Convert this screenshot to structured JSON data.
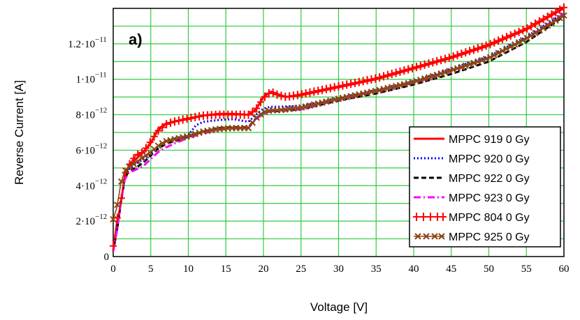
{
  "chart_data": {
    "type": "line",
    "panel_label": "a)",
    "xlabel": "Voltage [V]",
    "ylabel": "Reverse Current [A]",
    "xlim": [
      0,
      60
    ],
    "ylim": [
      0,
      1.4e-11
    ],
    "grid": true,
    "x_ticks": [
      0,
      5,
      10,
      15,
      20,
      25,
      30,
      35,
      40,
      45,
      50,
      55,
      60
    ],
    "x_tick_labels": [
      "0",
      "5",
      "10",
      "15",
      "20",
      "25",
      "30",
      "35",
      "40",
      "45",
      "50",
      "55",
      "60"
    ],
    "y_ticks": [
      {
        "value": 0,
        "mantissa": "0",
        "exponent": ""
      },
      {
        "value": 2e-12,
        "mantissa": "2·10",
        "exponent": "−12"
      },
      {
        "value": 4e-12,
        "mantissa": "4·10",
        "exponent": "−12"
      },
      {
        "value": 6e-12,
        "mantissa": "6·10",
        "exponent": "−12"
      },
      {
        "value": 8e-12,
        "mantissa": "8·10",
        "exponent": "−12"
      },
      {
        "value": 1e-11,
        "mantissa": "1·10",
        "exponent": "−11"
      },
      {
        "value": 1.2e-11,
        "mantissa": "1.2·10",
        "exponent": "−11"
      }
    ],
    "legend_position": "bottom-right",
    "series": [
      {
        "name": "MPPC 919 0 Gy",
        "color": "#ff0000",
        "style": "solid",
        "x": [
          0,
          0.5,
          1,
          1.5,
          2,
          3,
          4,
          5,
          6,
          7,
          8,
          10,
          12,
          14,
          16,
          18,
          19,
          20,
          21,
          22,
          23,
          25,
          30,
          35,
          40,
          45,
          50,
          55,
          60
        ],
        "y": [
          4e-13,
          1.5e-12,
          3e-12,
          4.4e-12,
          5e-12,
          5.5e-12,
          5.9e-12,
          6.4e-12,
          7.2e-12,
          7.5e-12,
          7.6e-12,
          7.75e-12,
          7.95e-12,
          8.05e-12,
          8.05e-12,
          8e-12,
          8.3e-12,
          9e-12,
          9.3e-12,
          9.15e-12,
          9e-12,
          9.1e-12,
          9.55e-12,
          1e-11,
          1.06e-11,
          1.12e-11,
          1.19e-11,
          1.28e-11,
          1.4e-11
        ]
      },
      {
        "name": "MPPC 920 0 Gy",
        "color": "#0000ff",
        "style": "dotted",
        "x": [
          0,
          0.5,
          1,
          1.5,
          2,
          3,
          4,
          5,
          6,
          7,
          8,
          10,
          11,
          12,
          14,
          16,
          18,
          19,
          20,
          21,
          22,
          25,
          30,
          35,
          40,
          45,
          50,
          55,
          60
        ],
        "y": [
          3e-13,
          1.5e-12,
          3e-12,
          4.3e-12,
          4.9e-12,
          5.2e-12,
          5.5e-12,
          5.8e-12,
          6.2e-12,
          6.5e-12,
          6.65e-12,
          6.85e-12,
          7.4e-12,
          7.6e-12,
          7.7e-12,
          7.75e-12,
          7.6e-12,
          8e-12,
          8.35e-12,
          8.45e-12,
          8.45e-12,
          8.5e-12,
          8.95e-12,
          9.4e-12,
          9.9e-12,
          1.06e-11,
          1.13e-11,
          1.24e-11,
          1.375e-11
        ]
      },
      {
        "name": "MPPC 922 0 Gy",
        "color": "#000000",
        "style": "dashed",
        "x": [
          0,
          0.5,
          1,
          1.5,
          2,
          3,
          4,
          5,
          6,
          7,
          8,
          10,
          12,
          14,
          16,
          18,
          19,
          20,
          21,
          22,
          25,
          30,
          35,
          40,
          45,
          50,
          55,
          60
        ],
        "y": [
          3e-13,
          1.5e-12,
          3e-12,
          4.3e-12,
          4.8e-12,
          5e-12,
          5.3e-12,
          5.7e-12,
          6.1e-12,
          6.35e-12,
          6.5e-12,
          6.75e-12,
          7.05e-12,
          7.25e-12,
          7.3e-12,
          7.3e-12,
          7.8e-12,
          8.1e-12,
          8.2e-12,
          8.2e-12,
          8.3e-12,
          8.8e-12,
          9.2e-12,
          9.7e-12,
          1.03e-11,
          1.1e-11,
          1.21e-11,
          1.355e-11
        ]
      },
      {
        "name": "MPPC 923 0 Gy",
        "color": "#ff00ff",
        "style": "dashdot",
        "x": [
          0,
          0.5,
          1,
          1.5,
          2,
          3,
          4,
          5,
          6,
          7,
          8,
          10,
          12,
          14,
          16,
          18,
          19,
          20,
          21,
          22,
          25,
          30,
          35,
          40,
          45,
          50,
          55,
          60
        ],
        "y": [
          3e-13,
          1.5e-12,
          3e-12,
          4.3e-12,
          4.7e-12,
          4.9e-12,
          5.1e-12,
          5.5e-12,
          5.9e-12,
          6.15e-12,
          6.35e-12,
          6.7e-12,
          6.95e-12,
          7.15e-12,
          7.25e-12,
          7.25e-12,
          7.75e-12,
          8.05e-12,
          8.2e-12,
          8.2e-12,
          8.3e-12,
          8.85e-12,
          9.3e-12,
          9.8e-12,
          1.045e-11,
          1.12e-11,
          1.23e-11,
          1.37e-11
        ]
      },
      {
        "name": "MPPC 804 0 Gy",
        "color": "#ff0000",
        "style": "plus",
        "x": [
          0,
          0.5,
          1,
          1.5,
          2,
          3,
          4,
          5,
          6,
          7,
          8,
          10,
          12,
          14,
          16,
          18,
          19,
          20,
          21,
          22,
          23,
          25,
          30,
          35,
          40,
          45,
          50,
          55,
          60
        ],
        "y": [
          6e-13,
          2.1e-12,
          3e-12,
          4.6e-12,
          5.1e-12,
          5.7e-12,
          5.9e-12,
          6.5e-12,
          7.1e-12,
          7.45e-12,
          7.6e-12,
          7.8e-12,
          7.95e-12,
          8e-12,
          8e-12,
          8e-12,
          8.3e-12,
          8.95e-12,
          9.3e-12,
          9.1e-12,
          9e-12,
          9.15e-12,
          9.6e-12,
          1.005e-11,
          1.065e-11,
          1.125e-11,
          1.195e-11,
          1.285e-11,
          1.405e-11
        ]
      },
      {
        "name": "MPPC 925 0 Gy",
        "color": "#8b4513",
        "style": "cross",
        "x": [
          0,
          0.5,
          1,
          1.5,
          2,
          3,
          4,
          5,
          6,
          7,
          8,
          10,
          12,
          14,
          16,
          18,
          19,
          20,
          21,
          22,
          25,
          30,
          35,
          40,
          45,
          50,
          55,
          60
        ],
        "y": [
          2.1e-12,
          2.8e-12,
          4.1e-12,
          4.8e-12,
          5e-12,
          5.3e-12,
          5.6e-12,
          5.9e-12,
          6.25e-12,
          6.5e-12,
          6.6e-12,
          6.8e-12,
          7.05e-12,
          7.2e-12,
          7.25e-12,
          7.25e-12,
          7.8e-12,
          8.15e-12,
          8.25e-12,
          8.25e-12,
          8.4e-12,
          8.9e-12,
          9.35e-12,
          9.85e-12,
          1.05e-11,
          1.12e-11,
          1.23e-11,
          1.36e-11
        ]
      }
    ]
  }
}
